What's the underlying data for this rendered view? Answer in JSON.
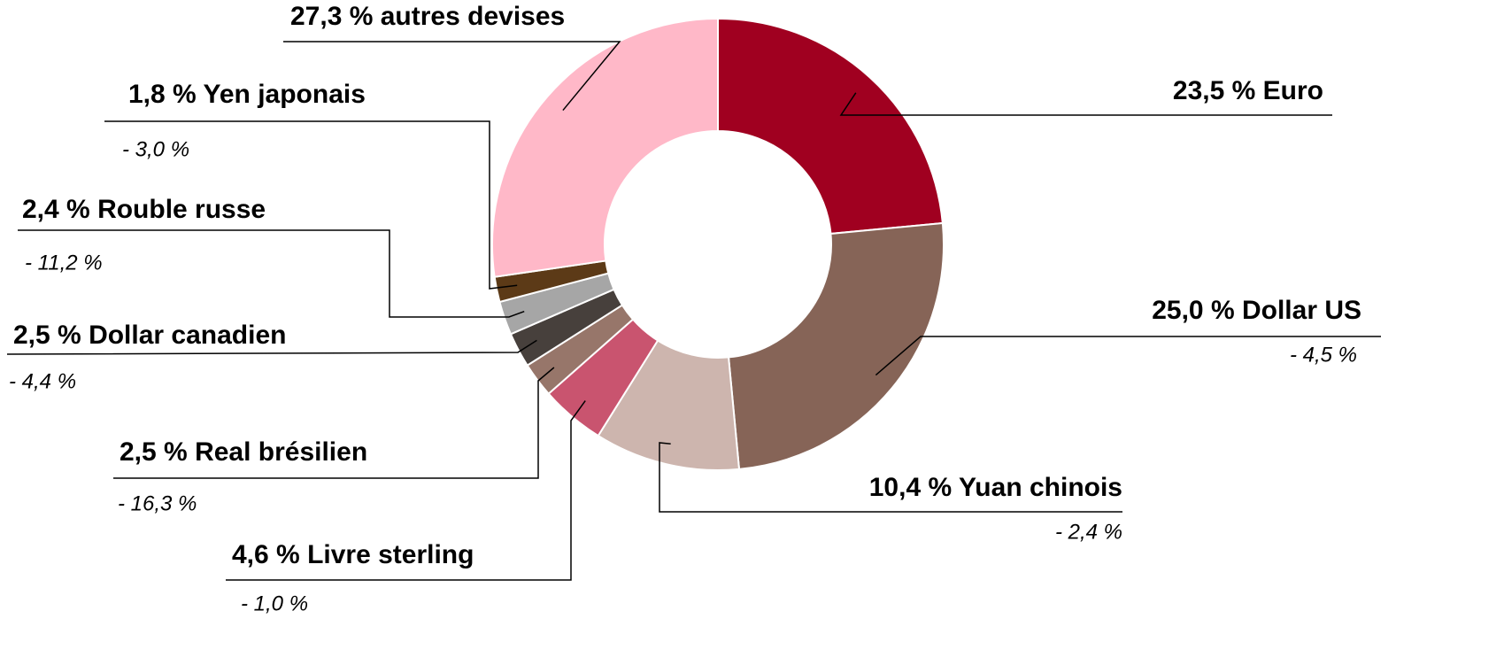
{
  "chart_data": {
    "type": "donut",
    "categories": [
      "Euro",
      "Dollar US",
      "Yuan chinois",
      "Livre sterling",
      "Real brésilien",
      "Dollar canadien",
      "Rouble russe",
      "Yen japonais",
      "autres devises"
    ],
    "values": [
      23.5,
      25.0,
      10.4,
      4.6,
      2.5,
      2.5,
      2.4,
      1.8,
      27.3
    ],
    "value_labels": [
      "23,5 %",
      "25,0 %",
      "10,4 %",
      "4,6 %",
      "2,5 %",
      "2,5 %",
      "2,4 %",
      "1,8 %",
      "27,3 %"
    ],
    "changes": [
      null,
      "- 4,5 %",
      "- 2,4 %",
      "- 1,0 %",
      "- 16,3 %",
      "- 4,4 %",
      "- 11,2 %",
      "- 3,0 %",
      null
    ],
    "colors": [
      "#a00020",
      "#866457",
      "#cdb5ae",
      "#c9546f",
      "#97766a",
      "#47403c",
      "#a6a6a6",
      "#5c3a17",
      "#ffb8c8"
    ]
  }
}
